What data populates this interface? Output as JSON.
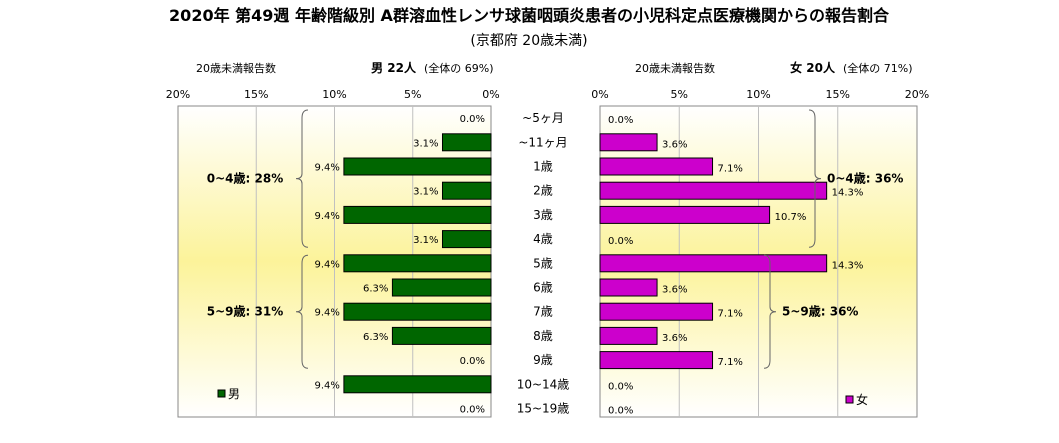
{
  "title": "2020年 第49週 年齢階級別 A群溶血性レンサ球菌咽頭炎患者の小児科定点医療機関からの報告割合",
  "subtitle": "(京都府 20歳未満)",
  "colors": {
    "male_bar": "#006600",
    "female_bar": "#cc00cc",
    "bar_border": "#000000",
    "plot_gradient_edge": "#ffffff",
    "plot_gradient_center": "#fcf39a"
  },
  "chart_data": {
    "type": "bar",
    "orientation": "horizontal",
    "categories": [
      "~5ヶ月",
      "~11ヶ月",
      "1歳",
      "2歳",
      "3歳",
      "4歳",
      "5歳",
      "6歳",
      "7歳",
      "8歳",
      "9歳",
      "10~14歳",
      "15~19歳"
    ],
    "male": {
      "header_label": "20歳未満報告数",
      "header_count": "男 22人",
      "header_share": "(全体の 69%)",
      "legend": "男",
      "axis_ticks": [
        "20%",
        "15%",
        "10%",
        "5%",
        "0%"
      ],
      "xlim": [
        0,
        20
      ],
      "values": [
        0.0,
        3.1,
        9.4,
        3.1,
        9.4,
        3.1,
        9.4,
        6.3,
        9.4,
        6.3,
        0.0,
        9.4,
        0.0
      ],
      "value_labels": [
        "0.0%",
        "3.1%",
        "9.4%",
        "3.1%",
        "9.4%",
        "3.1%",
        "9.4%",
        "6.3%",
        "9.4%",
        "6.3%",
        "0.0%",
        "9.4%",
        "0.0%"
      ],
      "groups": [
        {
          "label": "0~4歳: 28%",
          "from": 0,
          "to": 5
        },
        {
          "label": "5~9歳: 31%",
          "from": 6,
          "to": 10
        }
      ]
    },
    "female": {
      "header_label": "20歳未満報告数",
      "header_count": "女 20人",
      "header_share": "(全体の 71%)",
      "legend": "女",
      "axis_ticks": [
        "0%",
        "5%",
        "10%",
        "15%",
        "20%"
      ],
      "xlim": [
        0,
        20
      ],
      "values": [
        0.0,
        3.6,
        7.1,
        14.3,
        10.7,
        0.0,
        14.3,
        3.6,
        7.1,
        3.6,
        7.1,
        0.0,
        0.0
      ],
      "value_labels": [
        "0.0%",
        "3.6%",
        "7.1%",
        "14.3%",
        "10.7%",
        "0.0%",
        "14.3%",
        "3.6%",
        "7.1%",
        "3.6%",
        "7.1%",
        "0.0%",
        "0.0%"
      ],
      "groups": [
        {
          "label": "0~4歳: 36%",
          "from": 0,
          "to": 5
        },
        {
          "label": "5~9歳: 36%",
          "from": 6,
          "to": 10
        }
      ]
    }
  }
}
